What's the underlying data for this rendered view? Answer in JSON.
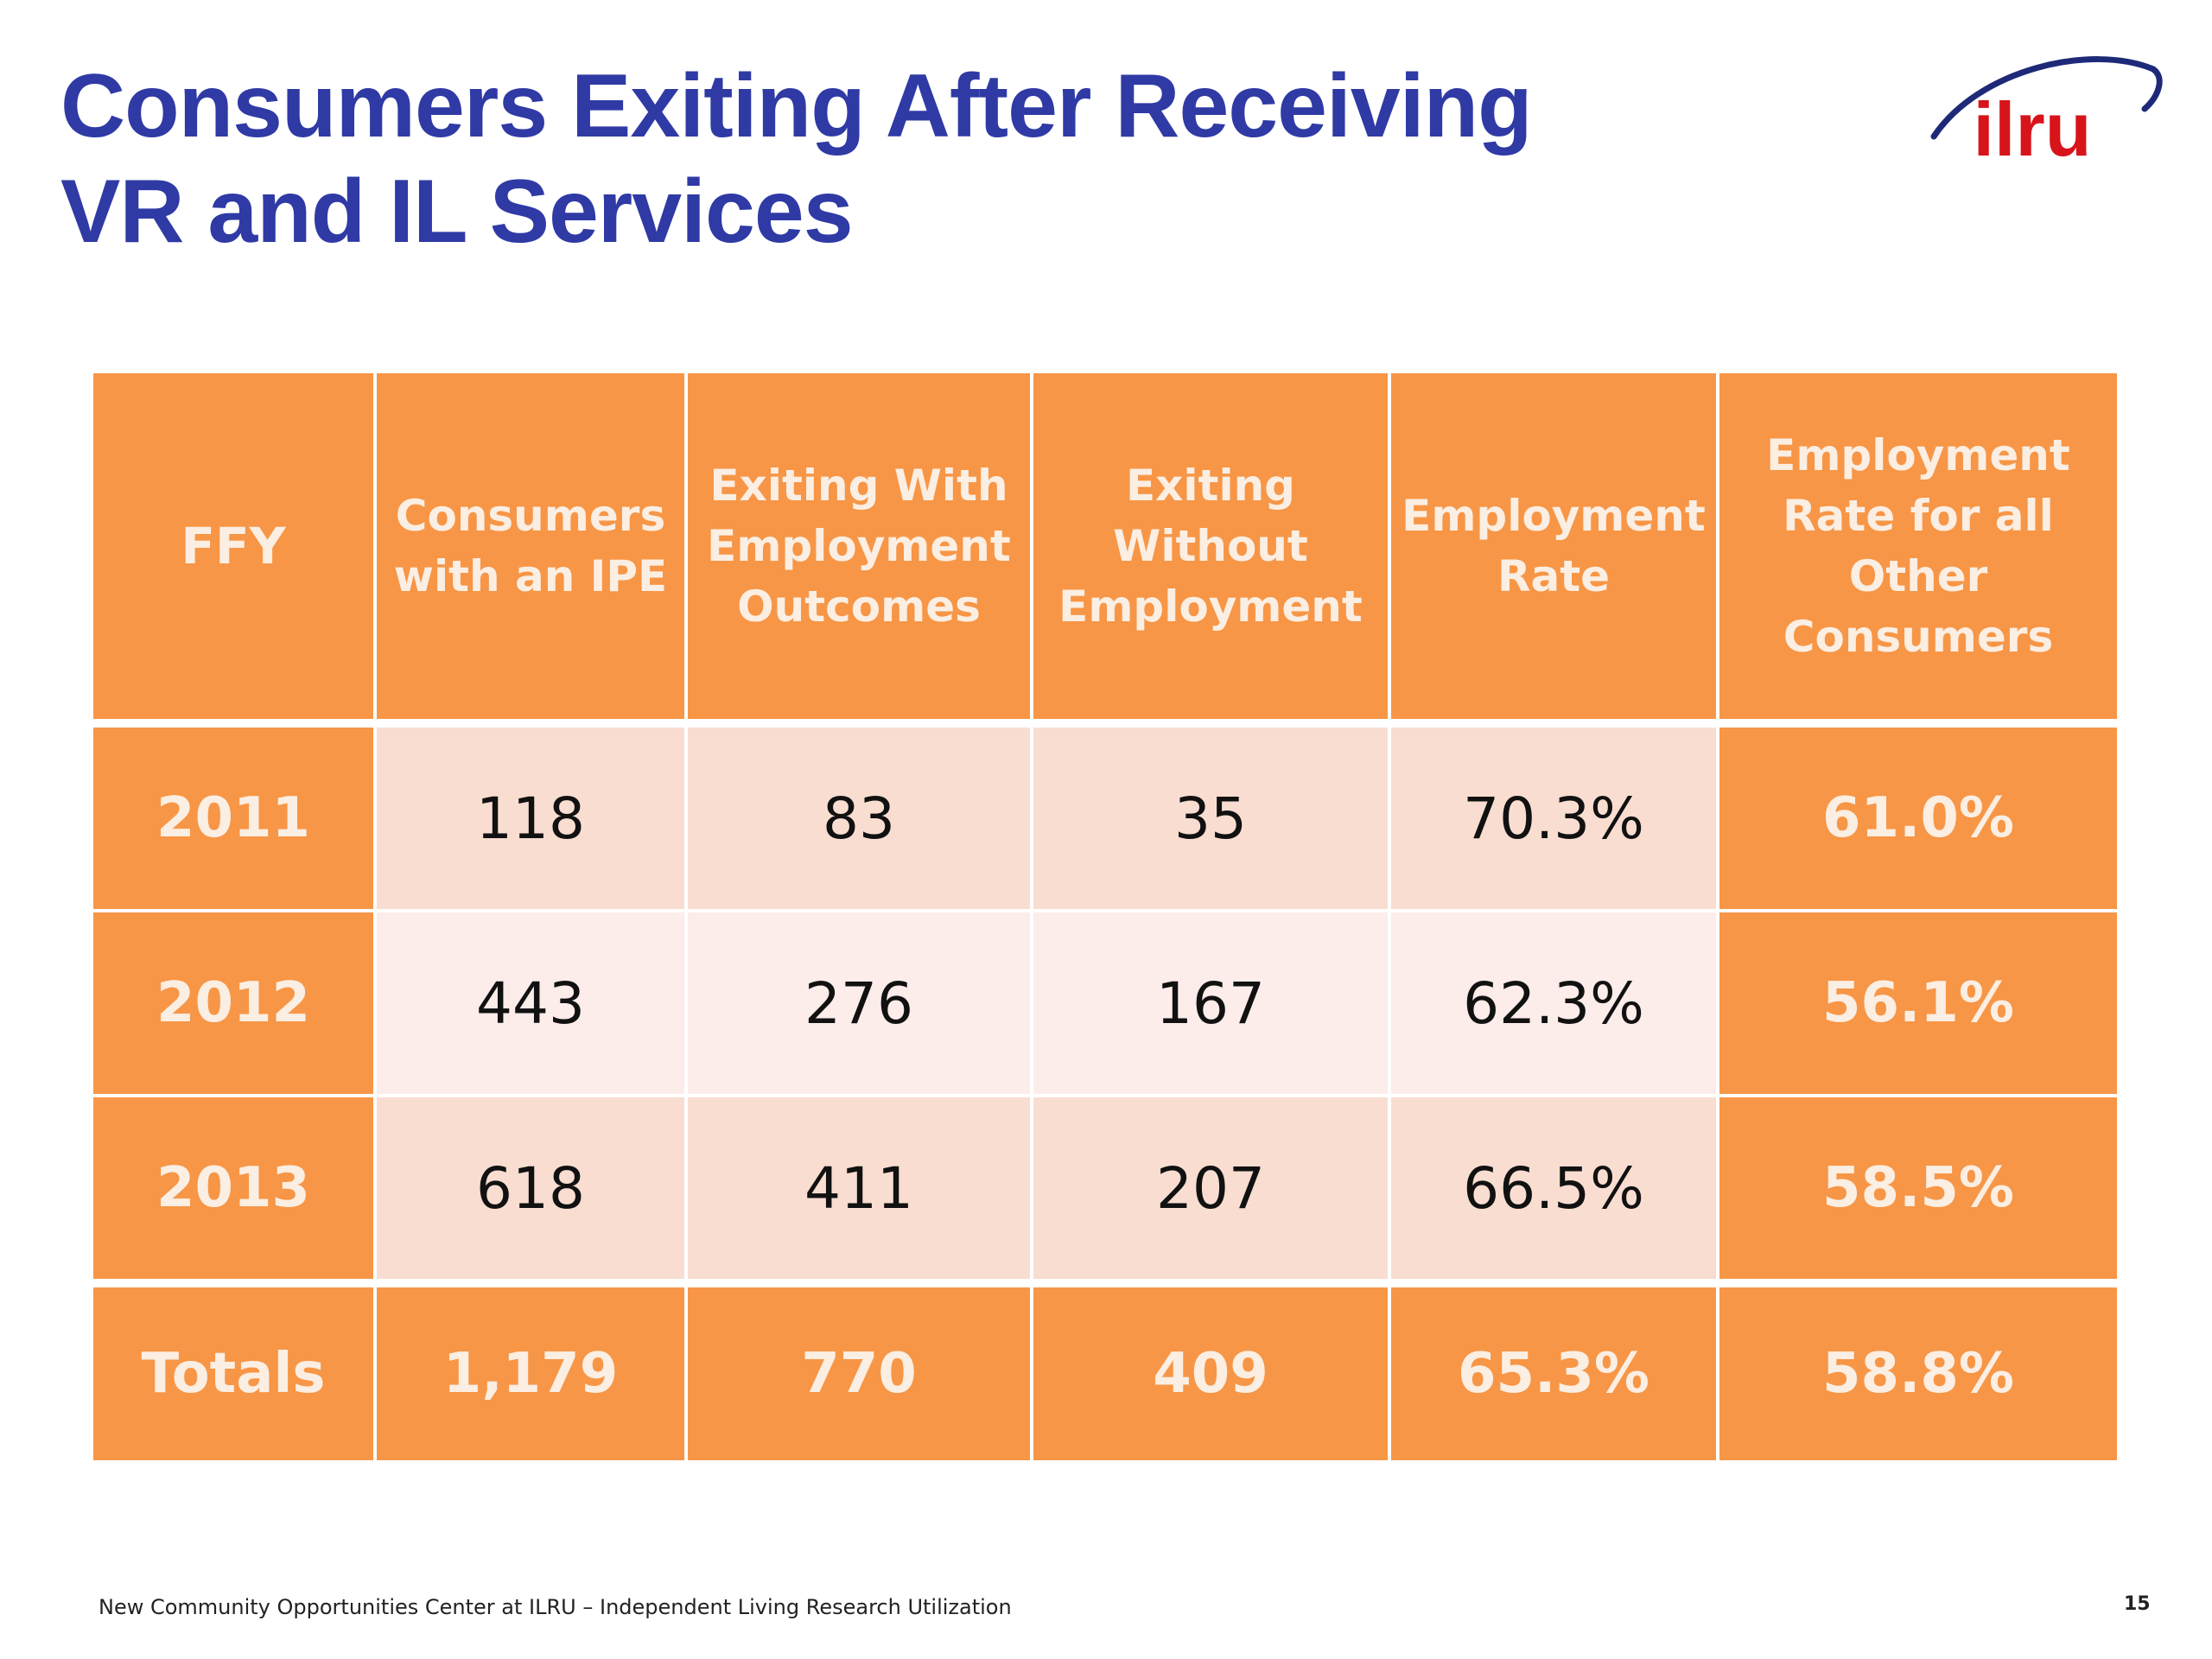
{
  "slide": {
    "title_line1": "Consumers Exiting After Receiving",
    "title_line2": "VR and IL Services",
    "logo_text": "ilru",
    "footer": "New Community Opportunities Center at ILRU – Independent Living Research Utilization",
    "page_number": "15"
  },
  "colors": {
    "title": "#2f3aa5",
    "header_orange": "#f79646",
    "row_light": "#f9ddd1",
    "row_lighter": "#fcecea",
    "logo_red": "#d7141a",
    "logo_swoosh": "#1e2a78"
  },
  "table": {
    "headers": [
      "FFY",
      "Consumers with an IPE",
      "Exiting With Employment Outcomes",
      "Exiting Without Employment",
      "Employment Rate",
      "Employment Rate for all Other Consumers"
    ],
    "rows": [
      [
        "2011",
        "118",
        "83",
        "35",
        "70.3%",
        "61.0%"
      ],
      [
        "2012",
        "443",
        "276",
        "167",
        "62.3%",
        "56.1%"
      ],
      [
        "2013",
        "618",
        "411",
        "207",
        "66.5%",
        "58.5%"
      ]
    ],
    "totals": [
      "Totals",
      "1,179",
      "770",
      "409",
      "65.3%",
      "58.8%"
    ]
  }
}
